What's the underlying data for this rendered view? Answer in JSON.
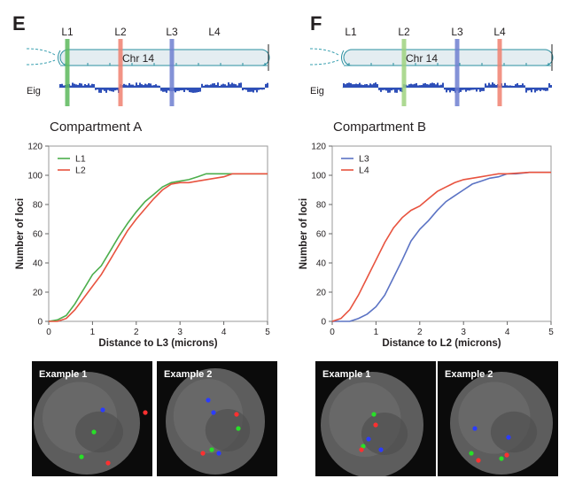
{
  "panels": [
    {
      "letter": "E",
      "chrom_label": "Chr 14",
      "eig_label": "Eig",
      "loci": [
        {
          "name": "L1",
          "color": "#5cb85c"
        },
        {
          "name": "L2",
          "color": "#f08070"
        },
        {
          "name": "L3",
          "color": "#6f7fd0"
        },
        {
          "name": "L4",
          "color": ""
        }
      ],
      "compartment": "Compartment A",
      "examples": [
        "Example 1",
        "Example 2"
      ]
    },
    {
      "letter": "F",
      "chrom_label": "Chr 14",
      "eig_label": "Eig",
      "loci": [
        {
          "name": "L1",
          "color": ""
        },
        {
          "name": "L2",
          "color": "#9fd27f"
        },
        {
          "name": "L3",
          "color": "#6f7fd0"
        },
        {
          "name": "L4",
          "color": "#f08070"
        }
      ],
      "compartment": "Compartment B",
      "examples": [
        "Example 1",
        "Example 2"
      ]
    }
  ],
  "chart_data": [
    {
      "type": "line",
      "title": "Compartment A",
      "xlabel": "Distance to L3 (microns)",
      "ylabel": "Number of loci",
      "xlim": [
        0,
        5
      ],
      "ylim": [
        0,
        120
      ],
      "xticks": [
        "0",
        "1",
        "2",
        "3",
        "4",
        "5"
      ],
      "yticks": [
        "0",
        "20",
        "40",
        "60",
        "80",
        "100",
        "120"
      ],
      "grid": false,
      "legend": "top-left",
      "series": [
        {
          "name": "L1",
          "color": "#4cae4c",
          "x": [
            0,
            0.2,
            0.4,
            0.6,
            0.8,
            1.0,
            1.2,
            1.4,
            1.6,
            1.8,
            2.0,
            2.2,
            2.4,
            2.6,
            2.8,
            3.0,
            3.2,
            3.4,
            3.6,
            4.0,
            4.5,
            5.0
          ],
          "y": [
            0,
            1,
            4,
            12,
            22,
            32,
            38,
            48,
            58,
            67,
            75,
            82,
            87,
            92,
            95,
            96,
            97,
            99,
            101,
            101,
            101,
            101
          ]
        },
        {
          "name": "L2",
          "color": "#e8533f",
          "x": [
            0,
            0.2,
            0.4,
            0.6,
            0.8,
            1.0,
            1.2,
            1.4,
            1.6,
            1.8,
            2.0,
            2.2,
            2.4,
            2.6,
            2.8,
            3.0,
            3.2,
            3.4,
            3.6,
            3.8,
            4.0,
            4.2,
            4.5,
            5.0
          ],
          "y": [
            0,
            0,
            2,
            8,
            16,
            24,
            32,
            42,
            52,
            62,
            70,
            77,
            84,
            90,
            94,
            95,
            95,
            96,
            97,
            98,
            99,
            101,
            101,
            101
          ]
        }
      ]
    },
    {
      "type": "line",
      "title": "Compartment B",
      "xlabel": "Distance to L2 (microns)",
      "ylabel": "Number of loci",
      "xlim": [
        0,
        5
      ],
      "ylim": [
        0,
        120
      ],
      "xticks": [
        "0",
        "1",
        "2",
        "3",
        "4",
        "5"
      ],
      "yticks": [
        "0",
        "20",
        "40",
        "60",
        "80",
        "100",
        "120"
      ],
      "grid": false,
      "legend": "top-left",
      "series": [
        {
          "name": "L3",
          "color": "#5b73c4",
          "x": [
            0,
            0.2,
            0.4,
            0.6,
            0.8,
            1.0,
            1.2,
            1.4,
            1.6,
            1.8,
            2.0,
            2.2,
            2.4,
            2.6,
            2.8,
            3.0,
            3.2,
            3.4,
            3.6,
            3.8,
            4.0,
            4.2,
            4.5,
            5.0
          ],
          "y": [
            0,
            0,
            0,
            2,
            5,
            10,
            18,
            30,
            42,
            55,
            63,
            69,
            76,
            82,
            86,
            90,
            94,
            96,
            98,
            99,
            101,
            101,
            102,
            102
          ]
        },
        {
          "name": "L4",
          "color": "#e8533f",
          "x": [
            0,
            0.2,
            0.4,
            0.6,
            0.8,
            1.0,
            1.2,
            1.4,
            1.6,
            1.8,
            2.0,
            2.2,
            2.4,
            2.6,
            2.8,
            3.0,
            3.2,
            3.4,
            3.6,
            3.8,
            4.0,
            4.5,
            5.0
          ],
          "y": [
            0,
            2,
            8,
            18,
            30,
            42,
            54,
            64,
            71,
            76,
            79,
            84,
            89,
            92,
            95,
            97,
            98,
            99,
            100,
            101,
            101,
            102,
            102
          ]
        }
      ]
    }
  ]
}
